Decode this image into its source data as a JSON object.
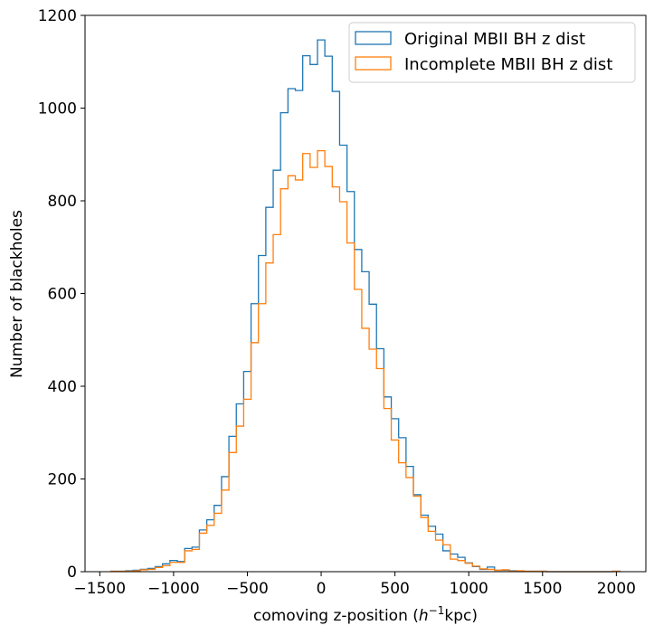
{
  "chart_data": {
    "type": "histogram",
    "xlabel_prefix": "comoving z-position (",
    "xlabel_h": "h",
    "xlabel_exp": "−1",
    "xlabel_suffix": "kpc)",
    "ylabel": "Number of blackholes",
    "xlim": [
      -1600,
      2200
    ],
    "ylim": [
      0,
      1200
    ],
    "xticks": [
      -1500,
      -1000,
      -500,
      0,
      500,
      1000,
      1500,
      2000
    ],
    "xtick_labels": [
      "−1500",
      "−1000",
      "−500",
      "0",
      "500",
      "1000",
      "1500",
      "2000"
    ],
    "yticks": [
      0,
      200,
      400,
      600,
      800,
      1000,
      1200
    ],
    "ytick_labels": [
      "0",
      "200",
      "400",
      "600",
      "800",
      "1000",
      "1200"
    ],
    "grid": false,
    "legend_position": "top-right",
    "bin_width": 50,
    "bin_start": -1425,
    "series": [
      {
        "name": "Original MBII BH z dist",
        "color": "#1f77b4",
        "values": [
          1,
          1,
          2,
          3,
          5,
          7,
          11,
          17,
          24,
          22,
          50,
          53,
          90,
          112,
          143,
          205,
          292,
          362,
          432,
          578,
          682,
          786,
          866,
          990,
          1042,
          1038,
          1113,
          1094,
          1147,
          1112,
          1036,
          920,
          820,
          695,
          647,
          577,
          481,
          377,
          330,
          289,
          227,
          166,
          122,
          98,
          81,
          45,
          38,
          31,
          19,
          11,
          5,
          10,
          3,
          3,
          2,
          1,
          1,
          1,
          1,
          0,
          0,
          0,
          0,
          0,
          0,
          0,
          0,
          0,
          1
        ]
      },
      {
        "name": "Incomplete MBII BH z dist",
        "color": "#ff7f0e",
        "values": [
          1,
          1,
          1,
          2,
          4,
          5,
          9,
          13,
          20,
          20,
          45,
          48,
          83,
          100,
          126,
          176,
          257,
          314,
          372,
          494,
          578,
          666,
          727,
          826,
          854,
          845,
          902,
          872,
          908,
          874,
          830,
          798,
          709,
          609,
          525,
          480,
          438,
          352,
          284,
          235,
          203,
          163,
          117,
          87,
          68,
          58,
          27,
          24,
          18,
          12,
          6,
          5,
          3,
          4,
          1,
          2,
          1,
          1,
          1,
          0,
          0,
          0,
          0,
          0,
          0,
          0,
          0,
          0,
          1
        ]
      }
    ]
  }
}
